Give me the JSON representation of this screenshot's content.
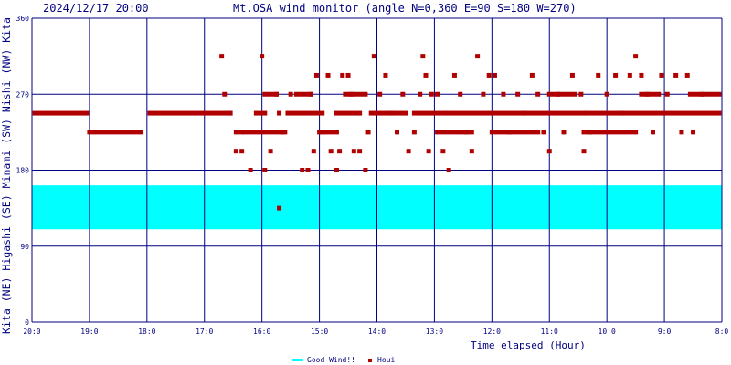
{
  "header": {
    "timestamp": "2024/12/17 20:00",
    "title": "Mt.OSA wind monitor (angle N=0,360 E=90 S=180 W=270)"
  },
  "side_label": "Kita (NE) Higashi (SE) Minami (SW) Nishi (NW) Kita",
  "chart_data": {
    "type": "scatter",
    "title": "Mt.OSA wind monitor (angle N=0,360 E=90 S=180 W=270)",
    "xlabel": "Time elapsed (Hour)",
    "ylabel": "Kita (NE) Higashi (SE) Minami (SW) Nishi (NW) Kita",
    "ylim": [
      0,
      360
    ],
    "yticks": [
      "0",
      "90",
      "180",
      "270",
      "360"
    ],
    "xlim": [
      20,
      8
    ],
    "xticks": [
      "20:0",
      "19:0",
      "18:0",
      "17:0",
      "16:0",
      "15:0",
      "14:0",
      "13:0",
      "12:0",
      "11:0",
      "10:0",
      "9:0",
      "8:0"
    ],
    "grid": true,
    "legend": {
      "placement": "bottom-center",
      "items": [
        "Good Wind!!",
        "Houi"
      ]
    },
    "good_wind_band": {
      "range": [
        110,
        162
      ],
      "color": "#00ffff",
      "label": "Good Wind!!"
    },
    "series": [
      {
        "name": "Houi",
        "color": "#b00000",
        "segments": [
          {
            "x": [
              19.95,
              19.05
            ],
            "y": 247.5
          },
          {
            "x": [
              19.0,
              18.1
            ],
            "y": 225
          },
          {
            "x": [
              17.95,
              16.55
            ],
            "y": 247.5
          },
          {
            "x": [
              16.45,
              16.35
            ],
            "y": 225
          },
          {
            "x": [
              16.3,
              15.6
            ],
            "y": 225
          },
          {
            "x": [
              16.1,
              15.95
            ],
            "y": 247.5
          },
          {
            "x": [
              15.95,
              15.75
            ],
            "y": 270
          },
          {
            "x": [
              15.55,
              14.95
            ],
            "y": 247.5
          },
          {
            "x": [
              15.4,
              15.15
            ],
            "y": 270
          },
          {
            "x": [
              14.9,
              14.7
            ],
            "y": 225
          },
          {
            "x": [
              14.7,
              14.3
            ],
            "y": 247.5
          },
          {
            "x": [
              14.55,
              14.2
            ],
            "y": 270
          },
          {
            "x": [
              14.1,
              13.5
            ],
            "y": 247.5
          },
          {
            "x": [
              13.35,
              12.8
            ],
            "y": 247.5
          },
          {
            "x": [
              12.95,
              12.35
            ],
            "y": 225
          },
          {
            "x": [
              12.75,
              10.4
            ],
            "y": 247.5
          },
          {
            "x": [
              12.0,
              11.2
            ],
            "y": 225
          },
          {
            "x": [
              11.0,
              10.55
            ],
            "y": 270
          },
          {
            "x": [
              10.35,
              8.05
            ],
            "y": 247.5
          },
          {
            "x": [
              10.4,
              9.5
            ],
            "y": 225
          },
          {
            "x": [
              9.4,
              9.1
            ],
            "y": 270
          },
          {
            "x": [
              8.55,
              8.05
            ],
            "y": 270
          }
        ],
        "points": [
          [
            16.7,
            315
          ],
          [
            16.65,
            270
          ],
          [
            16.55,
            247.5
          ],
          [
            16.45,
            202.5
          ],
          [
            16.35,
            202.5
          ],
          [
            16.2,
            180
          ],
          [
            16.0,
            315
          ],
          [
            15.95,
            180
          ],
          [
            15.85,
            202.5
          ],
          [
            15.75,
            270
          ],
          [
            15.7,
            247.5
          ],
          [
            15.65,
            225
          ],
          [
            15.5,
            270
          ],
          [
            15.3,
            180
          ],
          [
            15.2,
            180
          ],
          [
            15.15,
            270
          ],
          [
            15.1,
            202.5
          ],
          [
            15.05,
            292.5
          ],
          [
            15.0,
            225
          ],
          [
            14.95,
            225
          ],
          [
            14.85,
            292.5
          ],
          [
            14.8,
            202.5
          ],
          [
            14.7,
            180
          ],
          [
            14.65,
            202.5
          ],
          [
            14.6,
            292.5
          ],
          [
            14.5,
            292.5
          ],
          [
            14.45,
            270
          ],
          [
            14.4,
            202.5
          ],
          [
            14.3,
            202.5
          ],
          [
            14.2,
            180
          ],
          [
            14.15,
            225
          ],
          [
            14.05,
            315
          ],
          [
            13.95,
            270
          ],
          [
            13.85,
            292.5
          ],
          [
            13.75,
            247.5
          ],
          [
            13.65,
            225
          ],
          [
            13.55,
            270
          ],
          [
            13.45,
            202.5
          ],
          [
            13.35,
            225
          ],
          [
            13.25,
            270
          ],
          [
            13.2,
            315
          ],
          [
            13.15,
            292.5
          ],
          [
            13.1,
            202.5
          ],
          [
            13.05,
            270
          ],
          [
            12.95,
            270
          ],
          [
            12.85,
            202.5
          ],
          [
            12.75,
            180
          ],
          [
            12.65,
            292.5
          ],
          [
            12.55,
            270
          ],
          [
            12.45,
            225
          ],
          [
            12.35,
            202.5
          ],
          [
            12.25,
            315
          ],
          [
            12.15,
            270
          ],
          [
            12.05,
            292.5
          ],
          [
            11.95,
            292.5
          ],
          [
            11.8,
            270
          ],
          [
            11.7,
            225
          ],
          [
            11.55,
            270
          ],
          [
            11.45,
            247.5
          ],
          [
            11.3,
            292.5
          ],
          [
            11.2,
            270
          ],
          [
            11.1,
            225
          ],
          [
            11.0,
            202.5
          ],
          [
            10.85,
            270
          ],
          [
            10.75,
            225
          ],
          [
            10.6,
            292.5
          ],
          [
            10.45,
            270
          ],
          [
            10.4,
            202.5
          ],
          [
            10.3,
            225
          ],
          [
            10.15,
            292.5
          ],
          [
            10.0,
            270
          ],
          [
            9.85,
            292.5
          ],
          [
            9.75,
            247.5
          ],
          [
            9.6,
            292.5
          ],
          [
            9.5,
            315
          ],
          [
            9.4,
            292.5
          ],
          [
            9.3,
            270
          ],
          [
            9.2,
            225
          ],
          [
            9.05,
            292.5
          ],
          [
            8.95,
            270
          ],
          [
            8.8,
            292.5
          ],
          [
            8.7,
            225
          ],
          [
            8.6,
            292.5
          ],
          [
            8.5,
            225
          ],
          [
            8.35,
            270
          ]
        ],
        "outliers": [
          [
            15.7,
            135
          ]
        ]
      }
    ]
  }
}
